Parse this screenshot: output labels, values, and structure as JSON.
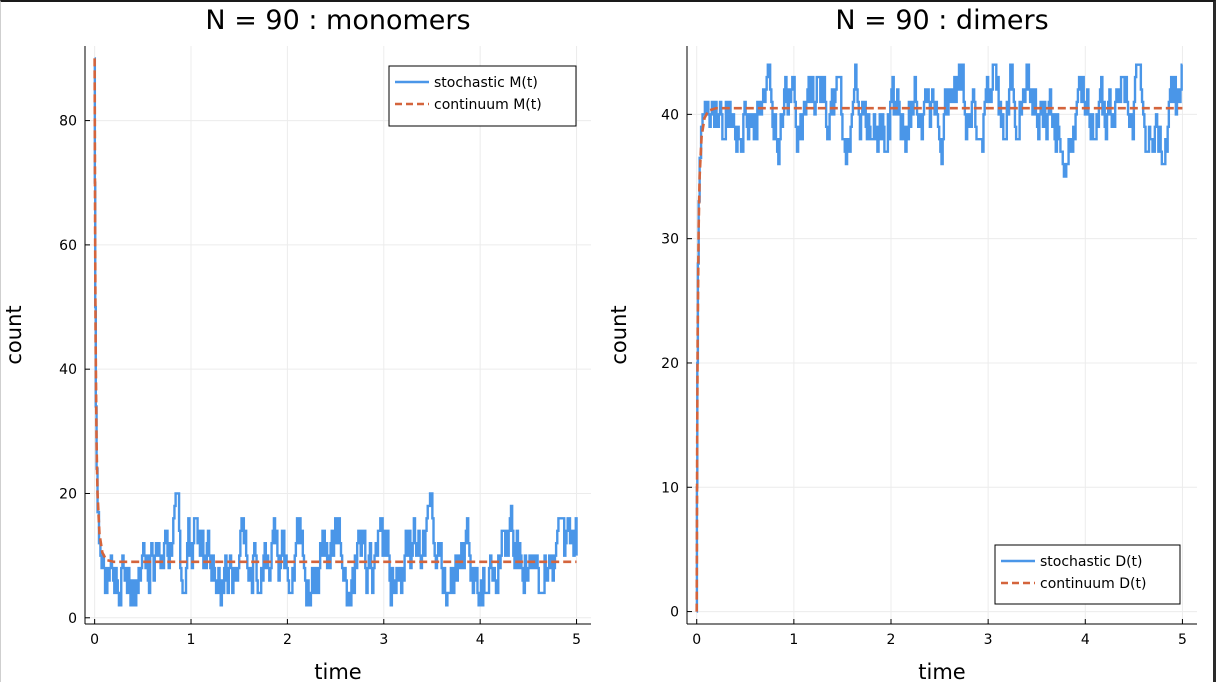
{
  "chart_data": [
    {
      "type": "line",
      "title": "N = 90 : monomers",
      "xlabel": "time",
      "ylabel": "count",
      "xlim": [
        -0.1,
        5.15
      ],
      "ylim": [
        -1,
        92
      ],
      "xticks": [
        0,
        1,
        2,
        3,
        4,
        5
      ],
      "yticks": [
        0,
        20,
        40,
        60,
        80
      ],
      "grid": true,
      "legend_position": "top-right",
      "series": [
        {
          "name": "stochastic M(t)",
          "style": "solid",
          "color": "#4a96e8",
          "seed": 7,
          "initial": [
            [
              0.0,
              90
            ],
            [
              0.002,
              70
            ],
            [
              0.006,
              50
            ],
            [
              0.012,
              34
            ],
            [
              0.02,
              24
            ],
            [
              0.03,
              17
            ],
            [
              0.045,
              12
            ],
            [
              0.06,
              10
            ]
          ],
          "mean": 9,
          "min": 2,
          "max": 20,
          "step_min": 2,
          "dt": 0.012,
          "t_end": 5.0
        },
        {
          "name": "continuum M(t)",
          "style": "dashed",
          "color": "#d4643c",
          "x": [
            0,
            0.005,
            0.01,
            0.02,
            0.03,
            0.05,
            0.08,
            0.12,
            0.2,
            5.0
          ],
          "y": [
            90,
            62,
            45,
            28,
            20,
            13.5,
            10.5,
            9.3,
            9.0,
            9.0
          ]
        }
      ]
    },
    {
      "type": "line",
      "title": "N = 90 : dimers",
      "xlabel": "time",
      "ylabel": "count",
      "xlim": [
        -0.1,
        5.15
      ],
      "ylim": [
        -1,
        45.5
      ],
      "xticks": [
        0,
        1,
        2,
        3,
        4,
        5
      ],
      "yticks": [
        0,
        10,
        20,
        30,
        40
      ],
      "grid": true,
      "legend_position": "bottom-right",
      "series": [
        {
          "name": "stochastic D(t)",
          "style": "solid",
          "color": "#4a96e8",
          "seed": 3,
          "initial": [
            [
              0.0,
              0
            ],
            [
              0.002,
              10
            ],
            [
              0.006,
              20
            ],
            [
              0.012,
              28
            ],
            [
              0.02,
              33
            ],
            [
              0.03,
              36.5
            ],
            [
              0.045,
              39
            ],
            [
              0.06,
              40
            ]
          ],
          "mean": 40.5,
          "min": 35,
          "max": 44,
          "step_min": 1,
          "dt": 0.012,
          "t_end": 5.0
        },
        {
          "name": "continuum D(t)",
          "style": "dashed",
          "color": "#d4643c",
          "x": [
            0,
            0.005,
            0.01,
            0.02,
            0.03,
            0.05,
            0.08,
            0.12,
            0.2,
            5.0
          ],
          "y": [
            0,
            14,
            22.5,
            31,
            35,
            38.2,
            39.7,
            40.3,
            40.5,
            40.5
          ]
        }
      ]
    }
  ]
}
